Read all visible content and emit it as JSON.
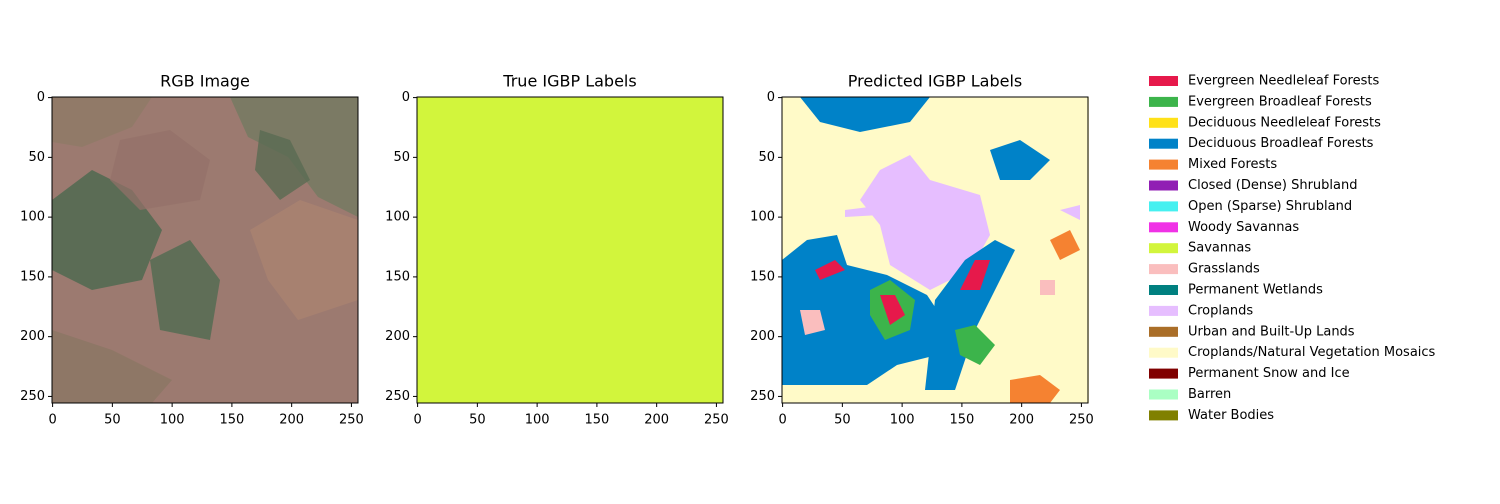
{
  "chart_data": [
    {
      "type": "image",
      "title": "RGB Image",
      "xlim": [
        -0.5,
        255.5
      ],
      "ylim": [
        255.5,
        -0.5
      ],
      "xticks": [
        0,
        50,
        100,
        150,
        200,
        250
      ],
      "yticks": [
        0,
        50,
        100,
        150,
        200,
        250
      ]
    },
    {
      "type": "image",
      "title": "True IGBP Labels",
      "xlim": [
        -0.5,
        255.5
      ],
      "ylim": [
        255.5,
        -0.5
      ],
      "xticks": [
        0,
        50,
        100,
        150,
        200,
        250
      ],
      "yticks": [
        0,
        50,
        100,
        150,
        200,
        250
      ]
    },
    {
      "type": "image",
      "title": "Predicted IGBP Labels",
      "xlim": [
        -0.5,
        255.5
      ],
      "ylim": [
        255.5,
        -0.5
      ],
      "xticks": [
        0,
        50,
        100,
        150,
        200,
        250
      ],
      "yticks": [
        0,
        50,
        100,
        150,
        200,
        250
      ]
    }
  ],
  "legend": {
    "items": [
      {
        "name": "Evergreen Needleleaf Forests",
        "color": "#e6194b"
      },
      {
        "name": "Evergreen Broadleaf Forests",
        "color": "#3cb44b"
      },
      {
        "name": "Deciduous Needleleaf Forests",
        "color": "#ffe119"
      },
      {
        "name": "Deciduous Broadleaf Forests",
        "color": "#0082c8"
      },
      {
        "name": "Mixed Forests",
        "color": "#f58231"
      },
      {
        "name": "Closed (Dense) Shrubland",
        "color": "#911eb4"
      },
      {
        "name": "Open (Sparse) Shrubland",
        "color": "#46f0f0"
      },
      {
        "name": "Woody Savannas",
        "color": "#f032e6"
      },
      {
        "name": "Savannas",
        "color": "#d2f53c"
      },
      {
        "name": "Grasslands",
        "color": "#fabebe"
      },
      {
        "name": "Permanent Wetlands",
        "color": "#008080"
      },
      {
        "name": "Croplands",
        "color": "#e6beff"
      },
      {
        "name": "Urban and Built-Up Lands",
        "color": "#aa6e28"
      },
      {
        "name": "Croplands/Natural Vegetation Mosaics",
        "color": "#fffac8"
      },
      {
        "name": "Permanent Snow and Ice",
        "color": "#800000"
      },
      {
        "name": "Barren",
        "color": "#aaffc3"
      },
      {
        "name": "Water Bodies",
        "color": "#808000"
      }
    ]
  }
}
